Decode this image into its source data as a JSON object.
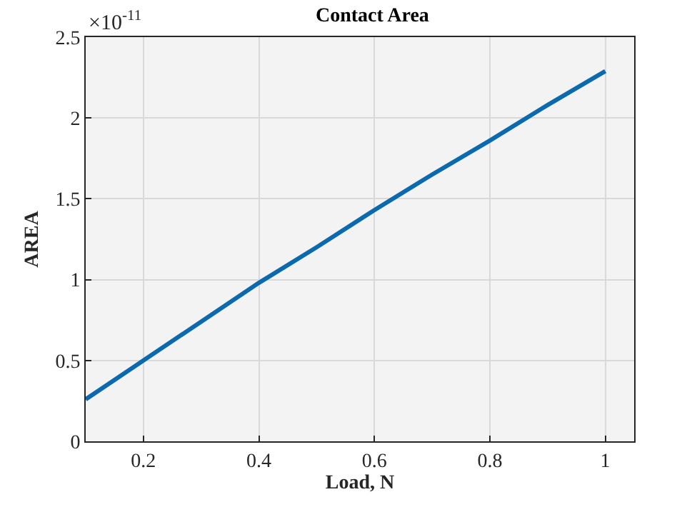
{
  "chart_data": {
    "type": "line",
    "title": "Contact Area",
    "xlabel": "Load, N",
    "ylabel": "AREA",
    "annotations": [
      "×10$^{-11}$"
    ],
    "x": [
      0.1,
      0.2,
      0.3,
      0.4,
      0.5,
      0.6,
      0.7,
      0.8,
      0.9,
      1.0
    ],
    "series": [
      {
        "color": "#0b6aad",
        "values": [
          0.26,
          0.5,
          0.74,
          0.98,
          1.2,
          1.43,
          1.65,
          1.86,
          2.08,
          2.29
        ]
      }
    ],
    "xlim": [
      0.1,
      1.05
    ],
    "xticks": [
      0.2,
      0.4,
      0.6,
      0.8,
      1
    ],
    "ylim": [
      0,
      2.5
    ],
    "yticks": [
      0,
      0.5,
      1,
      1.5,
      2,
      2.5
    ],
    "grid": true,
    "marker": "none",
    "line_style": "solid"
  }
}
